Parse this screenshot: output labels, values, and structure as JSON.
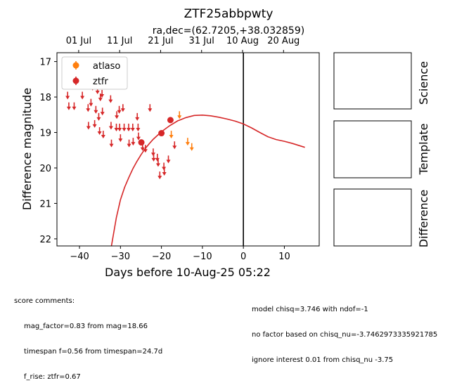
{
  "chart_data": {
    "type": "scatter",
    "title": "ZTF25abbpwty",
    "subtitle": "ra,dec=(62.7205,+38.032859)",
    "xlabel": "Days before 10-Aug-25 05:22",
    "ylabel": "Difference magnitude",
    "xlim": [
      -45.5,
      18.5
    ],
    "ylim": [
      22.2,
      16.75
    ],
    "y_inverted": true,
    "x_ticks": [
      -40,
      -30,
      -20,
      -10,
      0,
      10
    ],
    "y_ticks": [
      17,
      18,
      19,
      20,
      21,
      22
    ],
    "top_axis_ticks": [
      {
        "x": -40.2,
        "label": "01 Jul"
      },
      {
        "x": -30.2,
        "label": "11 Jul"
      },
      {
        "x": -20.2,
        "label": "21 Jul"
      },
      {
        "x": -10.2,
        "label": "31 Jul"
      },
      {
        "x": -0.2,
        "label": "10 Aug"
      },
      {
        "x": 9.8,
        "label": "20 Aug"
      }
    ],
    "vline_x": 0,
    "legend": {
      "position": "top-left",
      "entries": [
        {
          "name": "atlaso",
          "color": "#ff7f0e"
        },
        {
          "name": "ztfr",
          "color": "#d62728"
        }
      ]
    },
    "series": [
      {
        "name": "ztfr",
        "color": "#d62728",
        "detections": [
          {
            "x": -24.9,
            "y": 19.28,
            "err": 0.07
          },
          {
            "x": -20.0,
            "y": 19.02,
            "err": 0.06
          },
          {
            "x": -17.8,
            "y": 18.65,
            "err": 0.05
          }
        ],
        "upper_limits": [
          [
            -42.9,
            17.95
          ],
          [
            -42.6,
            18.25
          ],
          [
            -41.3,
            18.25
          ],
          [
            -39.3,
            17.95
          ],
          [
            -37.9,
            18.3
          ],
          [
            -37.8,
            18.8
          ],
          [
            -37.2,
            18.15
          ],
          [
            -36.8,
            17.7
          ],
          [
            -36.3,
            18.75
          ],
          [
            -36.0,
            18.35
          ],
          [
            -35.6,
            17.8
          ],
          [
            -35.3,
            18.55
          ],
          [
            -35.1,
            18.95
          ],
          [
            -34.9,
            18.0
          ],
          [
            -34.5,
            17.9
          ],
          [
            -34.4,
            18.4
          ],
          [
            -34.2,
            19.05
          ],
          [
            -32.4,
            18.05
          ],
          [
            -32.3,
            18.8
          ],
          [
            -32.2,
            19.3
          ],
          [
            -31.0,
            18.85
          ],
          [
            -30.9,
            18.5
          ],
          [
            -30.3,
            18.35
          ],
          [
            -30.2,
            18.85
          ],
          [
            -30.0,
            19.15
          ],
          [
            -29.4,
            18.3
          ],
          [
            -29.1,
            18.85
          ],
          [
            -28.0,
            18.85
          ],
          [
            -27.9,
            19.3
          ],
          [
            -27.0,
            18.85
          ],
          [
            -26.9,
            19.25
          ],
          [
            -25.9,
            18.55
          ],
          [
            -25.7,
            18.85
          ],
          [
            -25.6,
            19.1
          ],
          [
            -24.6,
            19.4
          ],
          [
            -23.9,
            19.45
          ],
          [
            -22.8,
            18.3
          ],
          [
            -22.0,
            19.55
          ],
          [
            -21.9,
            19.7
          ],
          [
            -21.0,
            19.7
          ],
          [
            -20.8,
            19.85
          ],
          [
            -20.4,
            20.2
          ],
          [
            -19.4,
            19.95
          ],
          [
            -19.3,
            20.1
          ],
          [
            -18.3,
            19.75
          ],
          [
            -16.8,
            19.35
          ]
        ]
      },
      {
        "name": "atlaso",
        "color": "#ff7f0e",
        "detections": [],
        "upper_limits": [
          [
            -17.6,
            19.05
          ],
          [
            -15.6,
            18.5
          ],
          [
            -13.6,
            19.25
          ],
          [
            -12.6,
            19.4
          ]
        ]
      }
    ],
    "model_curve": {
      "color": "#d62728",
      "x": [
        -32.2,
        -31.0,
        -30.0,
        -29.0,
        -28.0,
        -27.0,
        -26.0,
        -25.0,
        -24.0,
        -23.0,
        -22.0,
        -20.0,
        -18.0,
        -16.0,
        -14.0,
        -12.0,
        -10.0,
        -8.0,
        -6.0,
        -4.0,
        -2.0,
        0.0,
        2.0,
        4.0,
        6.0,
        8.0,
        10.0,
        12.0,
        15.0
      ],
      "y": [
        22.2,
        21.4,
        20.9,
        20.55,
        20.28,
        20.03,
        19.82,
        19.63,
        19.46,
        19.32,
        19.19,
        18.98,
        18.81,
        18.67,
        18.58,
        18.52,
        18.51,
        18.53,
        18.57,
        18.62,
        18.68,
        18.76,
        18.87,
        19.0,
        19.12,
        19.2,
        19.25,
        19.31,
        19.42
      ]
    }
  },
  "thumbnails": {
    "science": "Science",
    "template": "Template",
    "difference": "Difference"
  },
  "comments": {
    "left": {
      "heading": "score comments:",
      "lines": [
        "mag_factor=0.83 from mag=18.66",
        "timespan f=0.56 from timespan=24.7d",
        "f_rise: ztfr=0.67"
      ]
    },
    "right": [
      "model chisq=3.746 with ndof=-1",
      "no factor based on chisq_nu=-3.7462973335921785",
      "ignore interest 0.01 from chisq_nu -3.75"
    ]
  }
}
